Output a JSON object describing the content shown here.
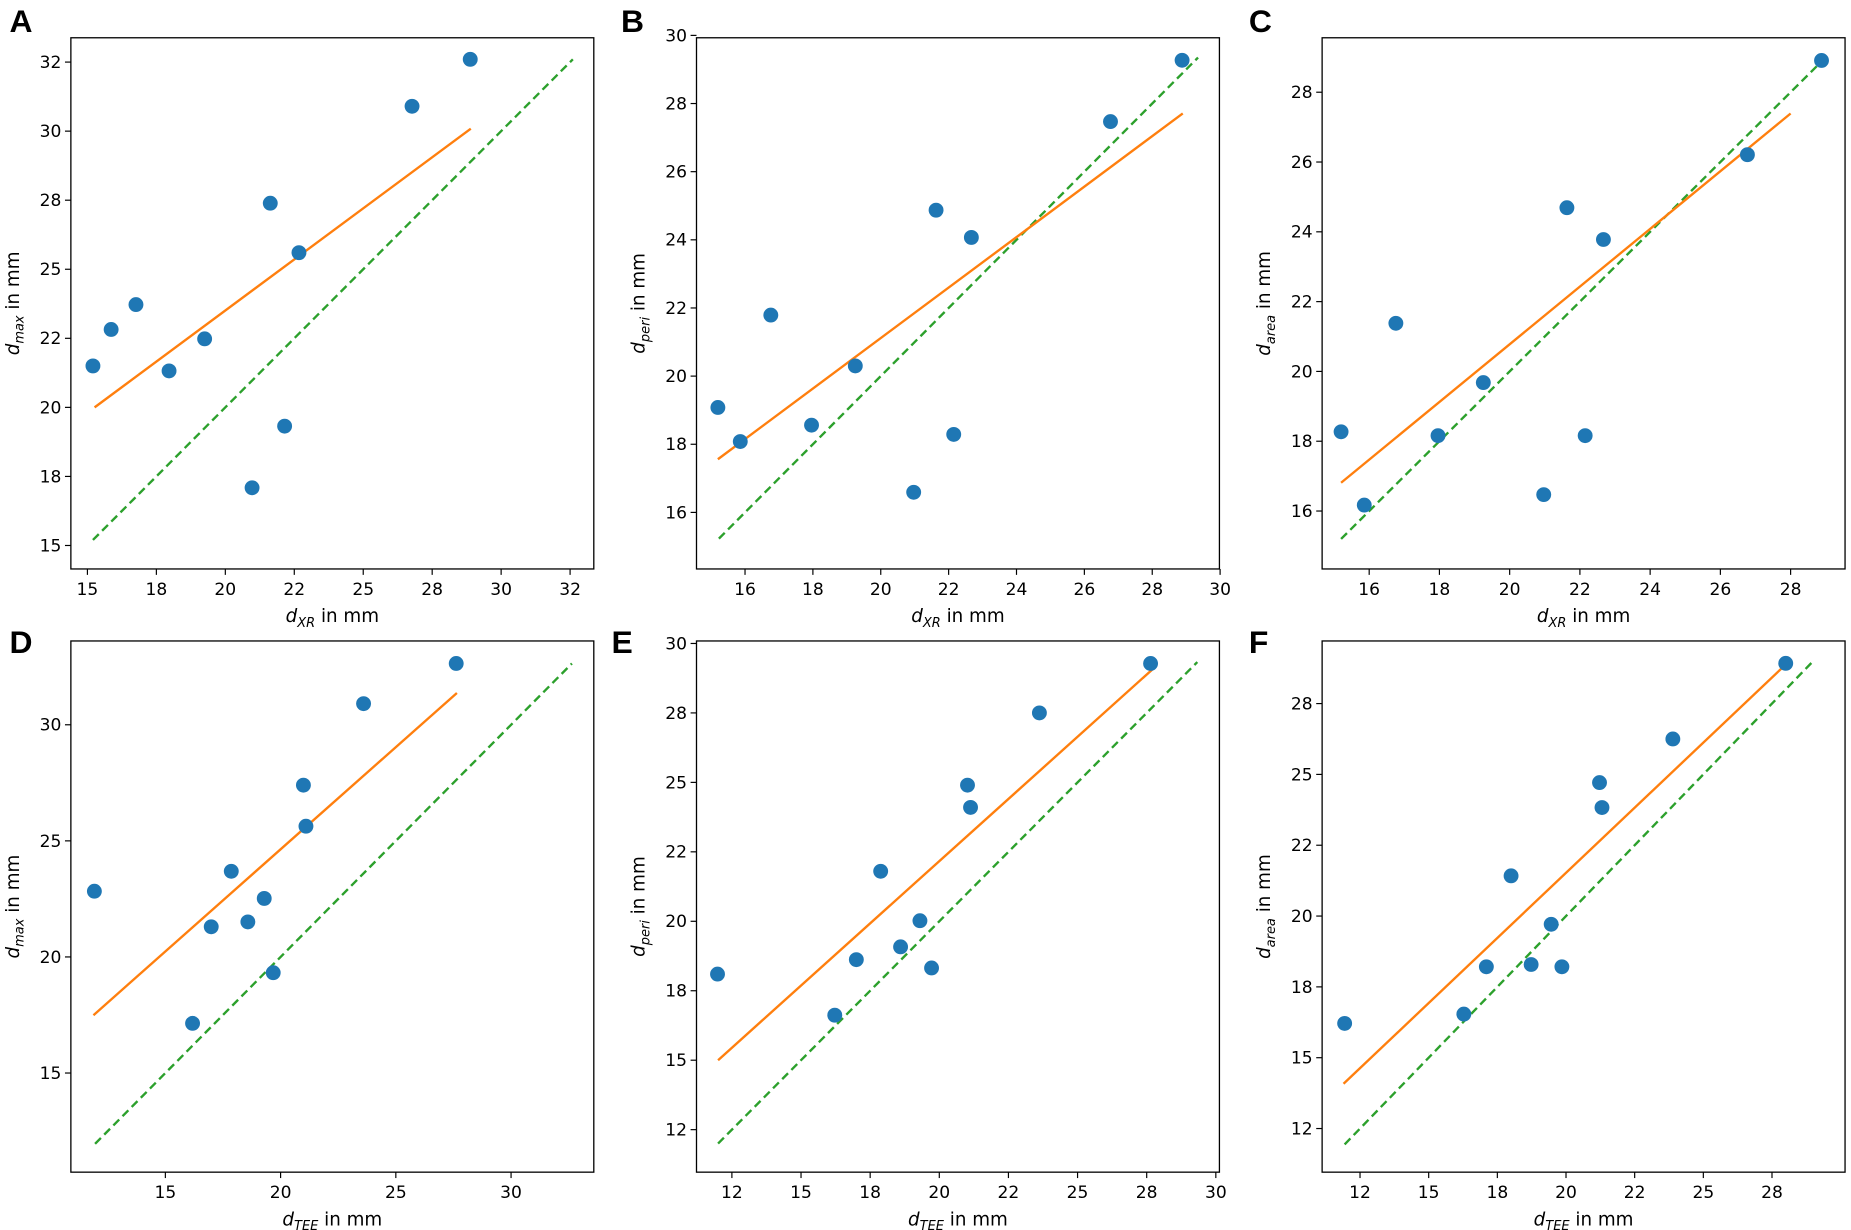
{
  "colors": {
    "points": "#1f77b4",
    "fit": "#ff7f0e",
    "identity": "#2ca02c"
  },
  "chart_data": [
    {
      "panel": "A",
      "type": "scatter",
      "xlabel": {
        "base": "d",
        "sub": "XR",
        "suffix": " in mm"
      },
      "ylabel": {
        "base": "d",
        "sub": "max",
        "suffix": " in mm"
      },
      "xlim": [
        14.4,
        33.36
      ],
      "ylim": [
        14.15,
        33.38
      ],
      "xticks": [
        15,
        17.5,
        20,
        22.5,
        25,
        27.5,
        30,
        32.5
      ],
      "xticklabels": [
        "15",
        "18",
        "20",
        "22",
        "25",
        "28",
        "30",
        "32"
      ],
      "yticks": [
        15,
        17.5,
        20,
        22.5,
        25,
        27.5,
        30,
        32.5
      ],
      "yticklabels": [
        "15",
        "18",
        "20",
        "22",
        "25",
        "28",
        "30",
        "32"
      ],
      "x": [
        15.2,
        15.86,
        16.76,
        17.96,
        19.25,
        20.97,
        21.63,
        22.15,
        22.67,
        26.77,
        28.88
      ],
      "y": [
        21.5,
        22.82,
        23.72,
        21.32,
        22.48,
        17.09,
        27.39,
        19.32,
        25.6,
        30.9,
        32.6
      ],
      "fit_line": [
        [
          15.26,
          20.0
        ],
        [
          28.9,
          30.09
        ]
      ],
      "identity_line": [
        [
          15.2,
          15.2
        ],
        [
          32.6,
          32.6
        ]
      ]
    },
    {
      "panel": "B",
      "type": "scatter",
      "xlabel": {
        "base": "d",
        "sub": "XR",
        "suffix": " in mm"
      },
      "ylabel": {
        "base": "d",
        "sub": "peri",
        "suffix": " in mm"
      },
      "xlim": [
        14.57,
        29.98
      ],
      "ylim": [
        14.34,
        29.93
      ],
      "xticks": [
        16,
        18,
        20,
        22,
        24,
        26,
        28,
        30
      ],
      "xticklabels": [
        "16",
        "18",
        "20",
        "22",
        "24",
        "26",
        "28",
        "30"
      ],
      "yticks": [
        16,
        18,
        20,
        22,
        24,
        26,
        28,
        30
      ],
      "yticklabels": [
        "16",
        "18",
        "20",
        "22",
        "24",
        "26",
        "28",
        "30"
      ],
      "x": [
        15.2,
        15.86,
        16.76,
        17.96,
        19.25,
        20.97,
        21.63,
        22.15,
        22.67,
        26.77,
        28.88
      ],
      "y": [
        19.08,
        18.08,
        21.79,
        18.56,
        20.3,
        16.59,
        24.87,
        18.29,
        24.07,
        27.47,
        29.27
      ],
      "fit_line": [
        [
          15.2,
          17.56
        ],
        [
          28.9,
          27.71
        ]
      ],
      "identity_line": [
        [
          15.23,
          15.23
        ],
        [
          29.35,
          29.35
        ]
      ]
    },
    {
      "panel": "C",
      "type": "scatter",
      "xlabel": {
        "base": "d",
        "sub": "XR",
        "suffix": " in mm"
      },
      "ylabel": {
        "base": "d",
        "sub": "area",
        "suffix": " in mm"
      },
      "xlim": [
        14.66,
        29.55
      ],
      "ylim": [
        14.34,
        29.56
      ],
      "xticks": [
        16,
        18,
        20,
        22,
        24,
        26,
        28
      ],
      "xticklabels": [
        "16",
        "18",
        "20",
        "22",
        "24",
        "26",
        "28"
      ],
      "yticks": [
        16,
        18,
        20,
        22,
        24,
        26,
        28
      ],
      "yticklabels": [
        "16",
        "18",
        "20",
        "22",
        "24",
        "26",
        "28"
      ],
      "x": [
        15.2,
        15.86,
        16.76,
        17.96,
        19.25,
        20.97,
        21.63,
        22.15,
        22.67,
        26.77,
        28.88
      ],
      "y": [
        18.27,
        16.17,
        21.38,
        18.16,
        19.68,
        16.47,
        24.69,
        18.16,
        23.78,
        26.21,
        28.91
      ],
      "fit_line": [
        [
          15.2,
          16.81
        ],
        [
          28.0,
          27.39
        ]
      ],
      "identity_line": [
        [
          15.2,
          15.2
        ],
        [
          29.04,
          29.04
        ]
      ]
    },
    {
      "panel": "D",
      "type": "scatter",
      "xlabel": {
        "base": "d",
        "sub": "TEE",
        "suffix": " in mm"
      },
      "ylabel": {
        "base": "d",
        "sub": "max",
        "suffix": " in mm"
      },
      "xlim": [
        10.9,
        33.59
      ],
      "ylim": [
        10.73,
        33.61
      ],
      "xticks": [
        15,
        20,
        25,
        30
      ],
      "xticklabels": [
        "15",
        "20",
        "25",
        "30"
      ],
      "yticks": [
        15,
        20,
        25,
        30
      ],
      "yticklabels": [
        "15",
        "20",
        "25",
        "30"
      ],
      "x": [
        11.92,
        16.18,
        16.99,
        17.86,
        18.58,
        19.29,
        19.68,
        20.99,
        21.1,
        23.6,
        27.62
      ],
      "y": [
        22.83,
        17.14,
        21.3,
        23.69,
        21.51,
        22.52,
        19.32,
        27.4,
        25.63,
        30.91,
        32.64
      ],
      "fit_line": [
        [
          11.88,
          17.49
        ],
        [
          27.65,
          31.37
        ]
      ],
      "identity_line": [
        [
          11.95,
          11.95
        ],
        [
          32.64,
          32.64
        ]
      ]
    },
    {
      "panel": "E",
      "type": "scatter",
      "xlabel": {
        "base": "d",
        "sub": "TEE",
        "suffix": " in mm"
      },
      "ylabel": {
        "base": "d",
        "sub": "peri",
        "suffix": " in mm"
      },
      "xlim": [
        11.22,
        30.13
      ],
      "ylim": [
        10.97,
        30.09
      ],
      "xticks": [
        12.5,
        15,
        17.5,
        20,
        22.5,
        25,
        27.5,
        30
      ],
      "xticklabels": [
        "12",
        "15",
        "18",
        "20",
        "22",
        "25",
        "28",
        "30"
      ],
      "yticks": [
        12.5,
        15,
        17.5,
        20,
        22.5,
        25,
        27.5,
        30
      ],
      "yticklabels": [
        "12",
        "15",
        "18",
        "20",
        "22",
        "25",
        "28",
        "30"
      ],
      "x": [
        11.98,
        16.22,
        17.0,
        17.88,
        18.6,
        19.3,
        19.72,
        21.02,
        21.13,
        23.62,
        27.64
      ],
      "y": [
        18.1,
        16.62,
        18.62,
        21.8,
        19.08,
        20.02,
        18.32,
        24.9,
        24.1,
        27.5,
        29.28
      ],
      "fit_line": [
        [
          12.0,
          15.0
        ],
        [
          27.8,
          29.15
        ]
      ],
      "identity_line": [
        [
          12.0,
          12.0
        ],
        [
          29.33,
          29.33
        ]
      ]
    },
    {
      "panel": "F",
      "type": "scatter",
      "xlabel": {
        "base": "d",
        "sub": "TEE",
        "suffix": " in mm"
      },
      "ylabel": {
        "base": "d",
        "sub": "area",
        "suffix": " in mm"
      },
      "xlim": [
        11.12,
        30.16
      ],
      "ylim": [
        10.96,
        29.71
      ],
      "xticks": [
        12.5,
        15,
        17.5,
        20,
        22.5,
        25,
        27.5
      ],
      "xticklabels": [
        "12",
        "15",
        "18",
        "20",
        "22",
        "25",
        "28"
      ],
      "yticks": [
        12.5,
        15,
        17.5,
        20,
        22.5,
        25,
        27.5
      ],
      "yticklabels": [
        "12",
        "15",
        "18",
        "20",
        "22",
        "25",
        "28"
      ],
      "x": [
        11.94,
        16.28,
        17.1,
        18.0,
        18.73,
        19.46,
        19.85,
        21.22,
        21.31,
        23.89,
        28.0
      ],
      "y": [
        16.21,
        16.54,
        18.21,
        21.42,
        18.29,
        19.71,
        18.21,
        24.71,
        23.83,
        26.25,
        28.92
      ],
      "fit_line": [
        [
          11.9,
          14.08
        ],
        [
          28.0,
          28.88
        ]
      ],
      "identity_line": [
        [
          11.94,
          11.94
        ],
        [
          28.96,
          28.96
        ]
      ]
    }
  ]
}
